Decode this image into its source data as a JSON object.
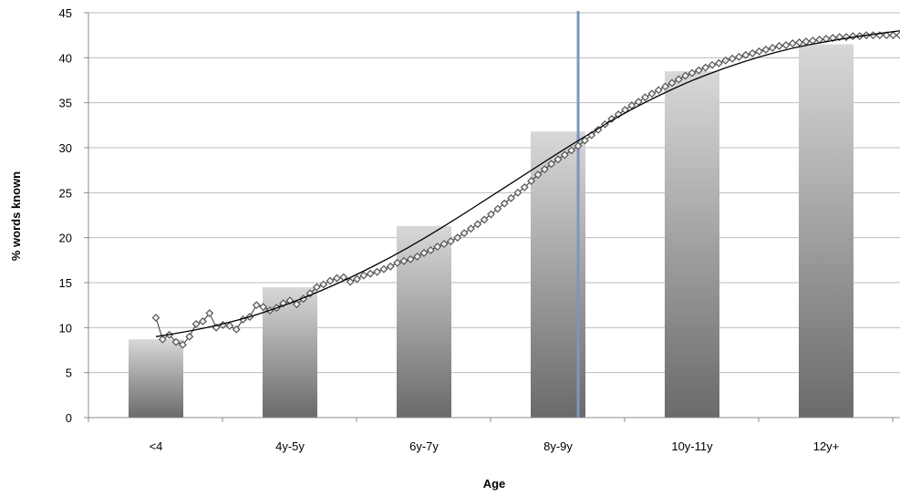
{
  "chart_data": {
    "type": "bar",
    "xlabel": "Age",
    "ylabel": "% words known",
    "ylim": [
      0,
      45
    ],
    "yticks": [
      0,
      5,
      10,
      15,
      20,
      25,
      30,
      35,
      40,
      45
    ],
    "categories": [
      "<4",
      "4y-5y",
      "6y-7y",
      "8y-9y",
      "10y-11y",
      "12y+"
    ],
    "values": [
      8.7,
      14.5,
      21.3,
      31.8,
      38.5,
      41.5
    ],
    "grid": true,
    "legend": "none",
    "vertical_marker_category_position": 3.15,
    "colors": {
      "bar_top": "#d8d8d8",
      "bar_bottom": "#6a6a6a",
      "marker_line": "#7b96c4",
      "trend_line": "#000000",
      "data_markers": "#555555"
    },
    "overlay_series": {
      "type": "line-with-markers",
      "x_category_position": [
        0.0,
        0.05,
        0.1,
        0.15,
        0.2,
        0.25,
        0.3,
        0.35,
        0.4,
        0.45,
        0.5,
        0.55,
        0.6,
        0.65,
        0.7,
        0.75,
        0.8,
        0.85,
        0.9,
        0.95,
        1.0,
        1.05,
        1.1,
        1.15,
        1.2,
        1.25,
        1.3,
        1.35,
        1.4,
        1.45,
        1.5,
        1.55,
        1.6,
        1.65,
        1.7,
        1.75,
        1.8,
        1.85,
        1.9,
        1.95,
        2.0,
        2.05,
        2.1,
        2.15,
        2.2,
        2.25,
        2.3,
        2.35,
        2.4,
        2.45,
        2.5,
        2.55,
        2.6,
        2.65,
        2.7,
        2.75,
        2.8,
        2.85,
        2.9,
        2.95,
        3.0,
        3.05,
        3.1,
        3.15,
        3.2,
        3.25,
        3.3,
        3.35,
        3.4,
        3.45,
        3.5,
        3.55,
        3.6,
        3.65,
        3.7,
        3.75,
        3.8,
        3.85,
        3.9,
        3.95,
        4.0,
        4.05,
        4.1,
        4.15,
        4.2,
        4.25,
        4.3,
        4.35,
        4.4,
        4.45,
        4.5,
        4.55,
        4.6,
        4.65,
        4.7,
        4.75,
        4.8,
        4.85,
        4.9,
        4.95,
        5.0,
        5.05,
        5.1,
        5.15,
        5.2,
        5.25,
        5.3,
        5.35,
        5.4,
        5.45,
        5.5,
        5.55
      ],
      "y": [
        11.1,
        8.7,
        9.2,
        8.4,
        8.1,
        9.0,
        10.4,
        10.7,
        11.6,
        10.0,
        10.3,
        10.2,
        9.8,
        10.9,
        11.2,
        12.5,
        12.3,
        11.9,
        12.2,
        12.7,
        13.0,
        12.6,
        13.2,
        13.8,
        14.5,
        14.8,
        15.2,
        15.5,
        15.6,
        15.1,
        15.4,
        15.8,
        16.0,
        16.2,
        16.5,
        16.8,
        17.2,
        17.4,
        17.6,
        17.9,
        18.3,
        18.6,
        19.0,
        19.3,
        19.6,
        20.0,
        20.5,
        21.0,
        21.5,
        22.0,
        22.6,
        23.2,
        23.8,
        24.4,
        25.0,
        25.6,
        26.3,
        27.0,
        27.6,
        28.2,
        28.7,
        29.2,
        29.7,
        30.2,
        30.8,
        31.4,
        32.0,
        32.6,
        33.2,
        33.7,
        34.2,
        34.7,
        35.1,
        35.6,
        36.0,
        36.4,
        36.8,
        37.2,
        37.6,
        38.0,
        38.3,
        38.6,
        38.9,
        39.2,
        39.4,
        39.7,
        39.9,
        40.1,
        40.3,
        40.5,
        40.7,
        40.9,
        41.1,
        41.3,
        41.4,
        41.6,
        41.7,
        41.8,
        41.9,
        42.0,
        42.1,
        42.2,
        42.3,
        42.3,
        42.4,
        42.4,
        42.5,
        42.5,
        42.5,
        42.5,
        42.5,
        42.5
      ]
    },
    "trend_line": {
      "type": "logistic",
      "x_category_position": [
        0.0,
        0.25,
        0.5,
        0.75,
        1.0,
        1.25,
        1.5,
        1.75,
        2.0,
        2.25,
        2.5,
        2.75,
        3.0,
        3.25,
        3.5,
        3.75,
        4.0,
        4.25,
        4.5,
        4.75,
        5.0,
        5.25,
        5.55
      ],
      "y": [
        9.0,
        9.6,
        10.4,
        11.4,
        12.7,
        14.2,
        15.9,
        17.8,
        19.9,
        22.2,
        24.6,
        27.0,
        29.4,
        31.7,
        33.9,
        35.8,
        37.5,
        38.9,
        40.1,
        41.1,
        41.8,
        42.4,
        43.0
      ]
    }
  }
}
